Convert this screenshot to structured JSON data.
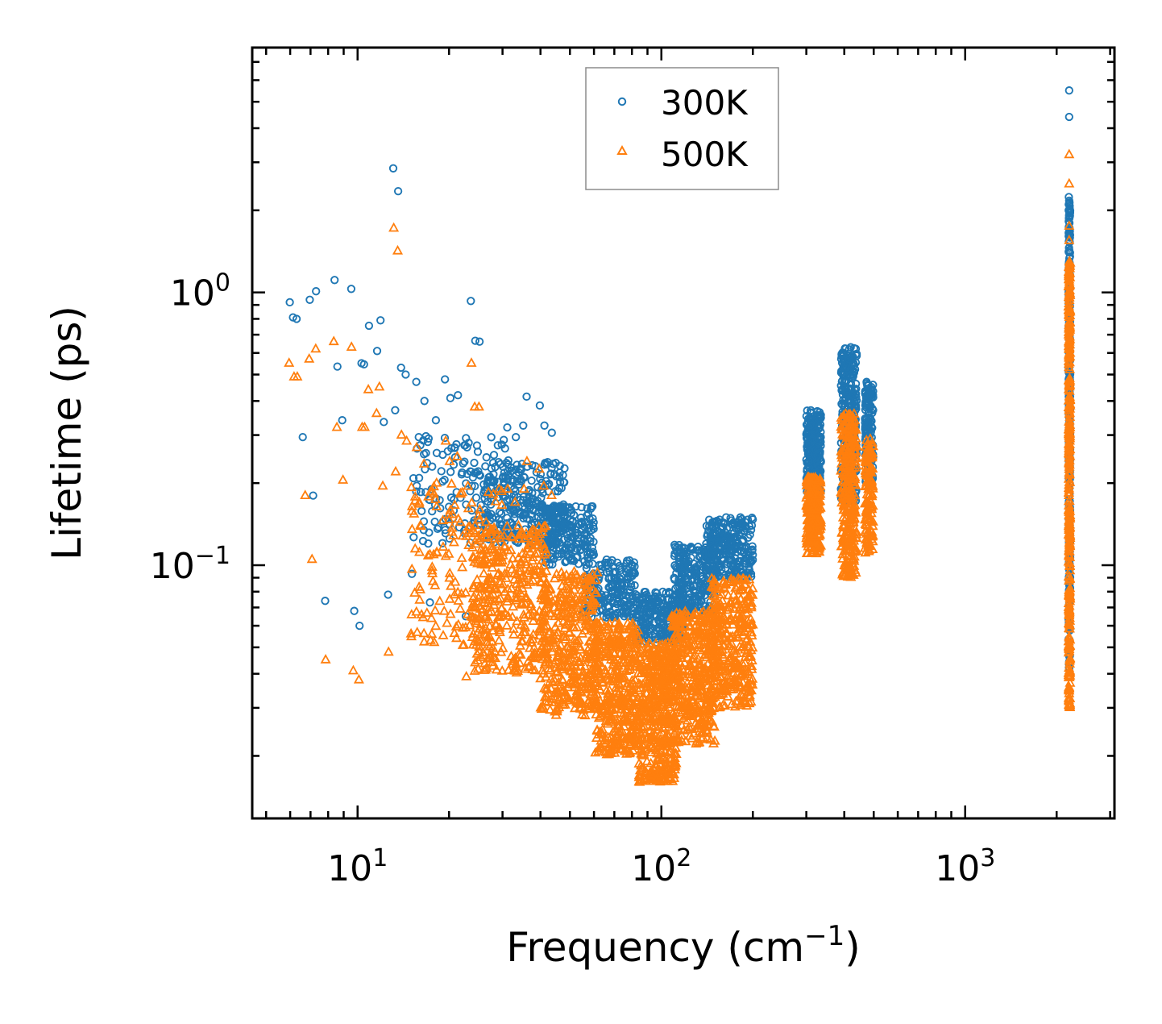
{
  "chart_data": {
    "type": "scatter",
    "xscale": "log",
    "yscale": "log",
    "xlabel_text": "Frequency (cm",
    "xlabel_sup": "−1",
    "xlabel_close": ")",
    "ylabel": "Lifetime (ps)",
    "xlim": [
      4.5,
      3100
    ],
    "ylim": [
      0.0118,
      7.9
    ],
    "xticks": [
      {
        "base": "10",
        "exp": "1",
        "value": 10
      },
      {
        "base": "10",
        "exp": "2",
        "value": 100
      },
      {
        "base": "10",
        "exp": "3",
        "value": 1000
      }
    ],
    "yticks": [
      {
        "base": "10",
        "exp": "0",
        "value": 1
      },
      {
        "base": "10",
        "exp": "−1",
        "value": 0.1
      }
    ],
    "legend_position": "top-center",
    "series": [
      {
        "name": "300K",
        "marker": "circle",
        "color": "#1f77b4",
        "points": [
          [
            5.98,
            0.92
          ],
          [
            6.13,
            0.81
          ],
          [
            6.3,
            0.8
          ],
          [
            6.6,
            0.295
          ],
          [
            6.96,
            0.94
          ],
          [
            7.14,
            0.18
          ],
          [
            7.3,
            1.01
          ],
          [
            7.82,
            0.074
          ],
          [
            8.4,
            1.11
          ],
          [
            8.58,
            0.535
          ],
          [
            8.9,
            0.34
          ],
          [
            9.53,
            1.03
          ],
          [
            9.75,
            0.068
          ],
          [
            10.15,
            0.06
          ],
          [
            10.3,
            0.55
          ],
          [
            10.5,
            0.545
          ],
          [
            10.9,
            0.755
          ],
          [
            11.6,
            0.61
          ],
          [
            11.9,
            0.79
          ],
          [
            12.2,
            0.335
          ],
          [
            12.6,
            0.078
          ],
          [
            13.1,
            2.85
          ],
          [
            13.3,
            0.37
          ],
          [
            13.6,
            2.35
          ],
          [
            13.9,
            0.53
          ],
          [
            14.4,
            0.5
          ],
          [
            15.1,
            0.093
          ],
          [
            15.6,
            0.47
          ],
          [
            15.9,
            0.295
          ],
          [
            16.6,
            0.4
          ],
          [
            17.3,
            0.073
          ],
          [
            18.1,
            0.34
          ],
          [
            19.4,
            0.48
          ],
          [
            20.2,
            0.41
          ],
          [
            21.4,
            0.42
          ],
          [
            22.7,
            0.065
          ],
          [
            23.6,
            0.93
          ],
          [
            24.4,
            0.665
          ],
          [
            25.2,
            0.66
          ],
          [
            31.1,
            0.32
          ],
          [
            33.2,
            0.295
          ],
          [
            35.1,
            0.325
          ],
          [
            36.0,
            0.415
          ],
          [
            39.8,
            0.385
          ],
          [
            41.2,
            0.325
          ],
          [
            43.6,
            0.306
          ]
        ],
        "scatter_clouds": [
          {
            "x_min": 15,
            "x_max": 32,
            "y_min": 0.12,
            "y_max": 0.3,
            "count": 140
          },
          {
            "x_min": 26,
            "x_max": 48,
            "y_min": 0.12,
            "y_max": 0.24,
            "count": 280
          },
          {
            "x_min": 40,
            "x_max": 60,
            "y_min": 0.1,
            "y_max": 0.165,
            "count": 200
          },
          {
            "x_min": 55,
            "x_max": 82,
            "y_min": 0.064,
            "y_max": 0.105,
            "count": 200
          },
          {
            "x_min": 82,
            "x_max": 118,
            "y_min": 0.052,
            "y_max": 0.08,
            "count": 240
          },
          {
            "x_min": 110,
            "x_max": 150,
            "y_min": 0.065,
            "y_max": 0.12,
            "count": 240
          },
          {
            "x_min": 140,
            "x_max": 200,
            "y_min": 0.09,
            "y_max": 0.15,
            "count": 260
          },
          {
            "x_min": 300,
            "x_max": 335,
            "y_min": 0.185,
            "y_max": 0.37,
            "count": 260
          },
          {
            "x_min": 390,
            "x_max": 440,
            "y_min": 0.17,
            "y_max": 0.63,
            "count": 300
          },
          {
            "x_min": 468,
            "x_max": 498,
            "y_min": 0.2,
            "y_max": 0.47,
            "count": 140
          },
          {
            "x_min": 2190,
            "x_max": 2215,
            "y_min": 0.04,
            "y_max": 2.25,
            "count": 320
          }
        ],
        "outliers_2200": [
          5.5,
          4.4,
          0.032
        ]
      },
      {
        "name": "500K",
        "marker": "triangle",
        "color": "#ff7f0e",
        "points": [
          [
            5.95,
            0.55
          ],
          [
            6.18,
            0.49
          ],
          [
            6.33,
            0.49
          ],
          [
            6.72,
            0.18
          ],
          [
            6.93,
            0.57
          ],
          [
            7.08,
            0.105
          ],
          [
            7.28,
            0.62
          ],
          [
            7.85,
            0.045
          ],
          [
            8.35,
            0.66
          ],
          [
            8.55,
            0.32
          ],
          [
            8.95,
            0.205
          ],
          [
            9.55,
            0.63
          ],
          [
            9.68,
            0.041
          ],
          [
            10.1,
            0.038
          ],
          [
            10.35,
            0.32
          ],
          [
            10.55,
            0.32
          ],
          [
            10.85,
            0.44
          ],
          [
            11.55,
            0.36
          ],
          [
            11.8,
            0.45
          ],
          [
            12.1,
            0.195
          ],
          [
            12.65,
            0.048
          ],
          [
            13.15,
            1.72
          ],
          [
            13.35,
            0.22
          ],
          [
            13.55,
            1.42
          ],
          [
            13.95,
            0.3
          ],
          [
            14.5,
            0.285
          ],
          [
            15.0,
            0.056
          ],
          [
            15.65,
            0.27
          ],
          [
            15.95,
            0.17
          ],
          [
            16.55,
            0.235
          ],
          [
            17.4,
            0.053
          ],
          [
            18.2,
            0.2
          ],
          [
            19.5,
            0.285
          ],
          [
            20.1,
            0.24
          ],
          [
            21.3,
            0.25
          ],
          [
            22.8,
            0.039
          ],
          [
            23.7,
            0.55
          ],
          [
            24.3,
            0.38
          ],
          [
            25.1,
            0.38
          ],
          [
            31.2,
            0.19
          ],
          [
            33.0,
            0.17
          ],
          [
            35.3,
            0.19
          ],
          [
            36.1,
            0.24
          ],
          [
            39.6,
            0.225
          ],
          [
            41.0,
            0.195
          ],
          [
            43.5,
            0.18
          ]
        ],
        "scatter_clouds": [
          {
            "x_min": 15,
            "x_max": 30,
            "y_min": 0.05,
            "y_max": 0.2,
            "count": 160
          },
          {
            "x_min": 24,
            "x_max": 42,
            "y_min": 0.04,
            "y_max": 0.14,
            "count": 360
          },
          {
            "x_min": 40,
            "x_max": 62,
            "y_min": 0.028,
            "y_max": 0.095,
            "count": 420
          },
          {
            "x_min": 60,
            "x_max": 84,
            "y_min": 0.02,
            "y_max": 0.062,
            "count": 420
          },
          {
            "x_min": 84,
            "x_max": 112,
            "y_min": 0.016,
            "y_max": 0.052,
            "count": 460
          },
          {
            "x_min": 108,
            "x_max": 150,
            "y_min": 0.022,
            "y_max": 0.068,
            "count": 420
          },
          {
            "x_min": 145,
            "x_max": 200,
            "y_min": 0.03,
            "y_max": 0.09,
            "count": 360
          },
          {
            "x_min": 300,
            "x_max": 335,
            "y_min": 0.11,
            "y_max": 0.21,
            "count": 240
          },
          {
            "x_min": 390,
            "x_max": 440,
            "y_min": 0.09,
            "y_max": 0.36,
            "count": 300
          },
          {
            "x_min": 468,
            "x_max": 498,
            "y_min": 0.11,
            "y_max": 0.29,
            "count": 130
          },
          {
            "x_min": 2190,
            "x_max": 2215,
            "y_min": 0.03,
            "y_max": 1.3,
            "count": 340
          }
        ],
        "outliers_2200": [
          3.2,
          2.5,
          1.75,
          1.55,
          0.0325
        ]
      }
    ]
  }
}
